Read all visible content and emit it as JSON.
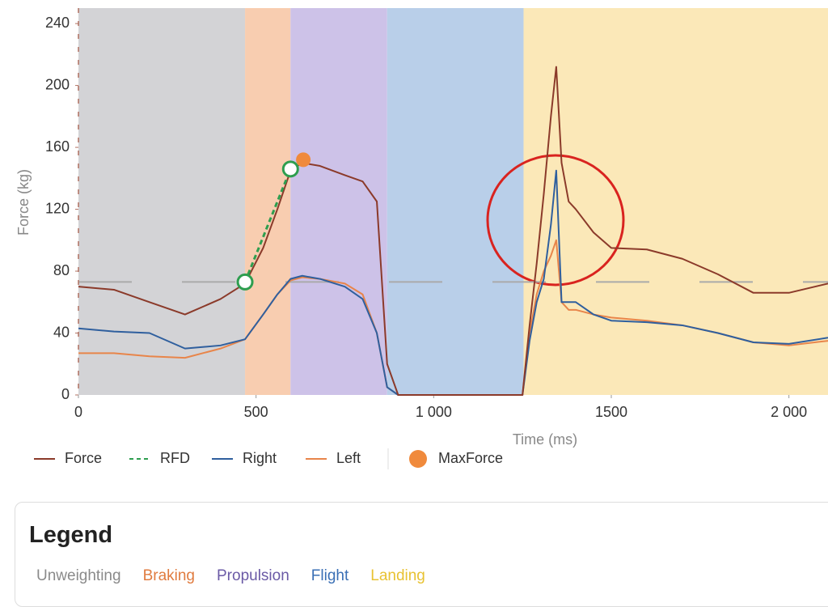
{
  "chart_data": {
    "type": "line",
    "x_label": "Time (ms)",
    "y_label": "Force (kg)",
    "xlim": [
      0,
      2110
    ],
    "ylim": [
      0,
      250
    ],
    "xticks": [
      0,
      500,
      {
        "value": 1000,
        "label": "1 000"
      },
      1500,
      {
        "value": 2000,
        "label": "2 000"
      }
    ],
    "yticks": [
      0,
      40,
      80,
      120,
      160,
      200,
      240
    ],
    "reference_line": 73,
    "phases": [
      {
        "name": "Unweighting",
        "start": 0,
        "end": 469,
        "color": "#d3d3d6",
        "text_color": "#8a8a8a"
      },
      {
        "name": "Braking",
        "start": 469,
        "end": 597,
        "color": "#f8cdb0",
        "text_color": "#e07b3f"
      },
      {
        "name": "Propulsion",
        "start": 597,
        "end": 869,
        "color": "#cdc2e8",
        "text_color": "#6b5aa6"
      },
      {
        "name": "Flight",
        "start": 869,
        "end": 1253,
        "color": "#b9cfe9",
        "text_color": "#3a6fb5"
      },
      {
        "name": "Landing",
        "start": 1253,
        "end": 2110,
        "color": "#fbe8b8",
        "text_color": "#e8c232"
      }
    ],
    "legend_title": "Legend",
    "x": [
      0,
      100,
      200,
      300,
      400,
      469,
      520,
      560,
      597,
      630,
      680,
      750,
      800,
      840,
      869,
      900,
      1000,
      1100,
      1200,
      1250,
      1270,
      1290,
      1310,
      1330,
      1345,
      1360,
      1380,
      1400,
      1450,
      1500,
      1600,
      1700,
      1800,
      1900,
      2000,
      2110
    ],
    "series": [
      {
        "name": "Force",
        "color": "#8b3a2a",
        "values": [
          70,
          68,
          60,
          52,
          62,
          72,
          95,
          120,
          145,
          150,
          148,
          142,
          138,
          125,
          20,
          0,
          0,
          0,
          0,
          0,
          45,
          85,
          130,
          180,
          212,
          150,
          125,
          120,
          105,
          95,
          94,
          88,
          78,
          66,
          66,
          72
        ]
      },
      {
        "name": "RFD",
        "color": "#2e9e4f",
        "dash": true,
        "marker": "hollow",
        "x": [
          469,
          597
        ],
        "values": [
          73,
          146
        ]
      },
      {
        "name": "Right",
        "color": "#2f5f9e",
        "values": [
          43,
          41,
          40,
          30,
          32,
          36,
          52,
          65,
          75,
          77,
          75,
          70,
          62,
          40,
          5,
          0,
          0,
          0,
          0,
          0,
          35,
          60,
          75,
          110,
          145,
          60,
          60,
          60,
          52,
          48,
          47,
          45,
          40,
          34,
          33,
          37
        ]
      },
      {
        "name": "Left",
        "color": "#e8854a",
        "values": [
          27,
          27,
          25,
          24,
          30,
          36,
          52,
          65,
          74,
          76,
          75,
          72,
          65,
          40,
          5,
          0,
          0,
          0,
          0,
          0,
          40,
          65,
          80,
          90,
          100,
          60,
          55,
          55,
          52,
          50,
          48,
          45,
          40,
          34,
          32,
          35
        ]
      },
      {
        "name": "MaxForce",
        "color": "#f08a3c",
        "line": false,
        "marker": "filled",
        "x": [
          633
        ],
        "values": [
          152
        ]
      }
    ]
  }
}
